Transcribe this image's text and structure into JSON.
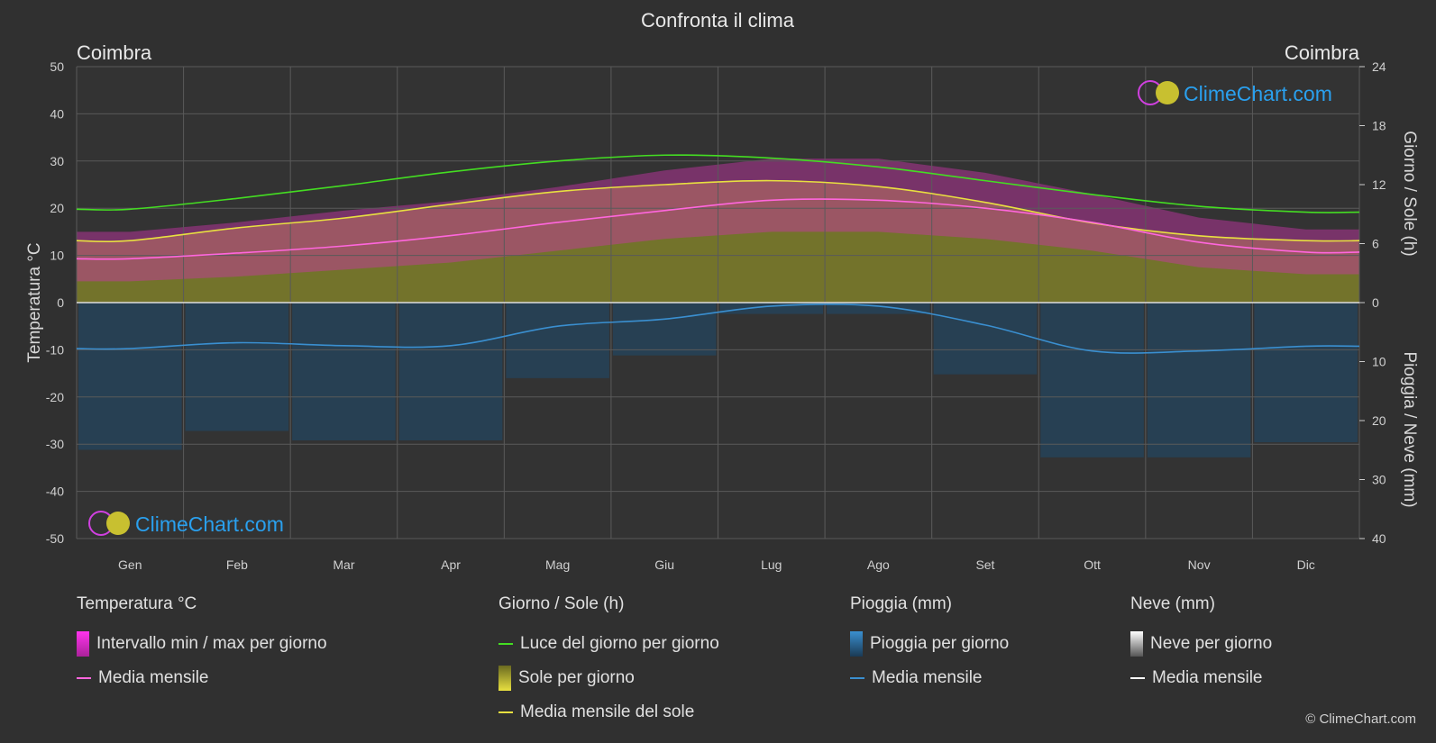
{
  "title": "Confronta il clima",
  "location_left": "Coimbra",
  "location_right": "Coimbra",
  "watermark": "ClimeChart.com",
  "copyright": "© ClimeChart.com",
  "colors": {
    "background": "#303030",
    "daylight": "#44dd22",
    "sunshine_avg": "#e8e040",
    "sunshine_fill": "#8a8a2a",
    "temp_avg": "#ff66dd",
    "temp_band": "#cc33aa",
    "rain": "#3a8fd0",
    "snow": "#ffffff",
    "watermark": "#2aa0ee"
  },
  "legend": {
    "temperature": {
      "title": "Temperatura °C",
      "range": "Intervallo min / max per giorno",
      "avg": "Media mensile"
    },
    "sun": {
      "title": "Giorno / Sole (h)",
      "daylight": "Luce del giorno per giorno",
      "sunshine": "Sole per giorno",
      "sunshine_avg": "Media mensile del sole"
    },
    "rain": {
      "title": "Pioggia (mm)",
      "daily": "Pioggia per giorno",
      "avg": "Media mensile"
    },
    "snow": {
      "title": "Neve (mm)",
      "daily": "Neve per giorno",
      "avg": "Media mensile"
    }
  },
  "chart_data": {
    "type": "area",
    "months": [
      "Gen",
      "Feb",
      "Mar",
      "Apr",
      "Mag",
      "Giu",
      "Lug",
      "Ago",
      "Set",
      "Ott",
      "Nov",
      "Dic"
    ],
    "y_left": {
      "label": "Temperatura °C",
      "min": -50,
      "max": 50,
      "ticks": [
        50,
        40,
        30,
        20,
        10,
        0,
        -10,
        -20,
        -30,
        -40,
        -50
      ]
    },
    "y_right_top": {
      "label": "Giorno / Sole (h)",
      "min": 0,
      "max": 24,
      "ticks": [
        24,
        18,
        12,
        6,
        0
      ]
    },
    "y_right_bottom": {
      "label": "Pioggia / Neve (mm)",
      "min": 0,
      "max": 40,
      "ticks": [
        0,
        10,
        20,
        30,
        40
      ]
    },
    "series": [
      {
        "name": "Luce del giorno per giorno",
        "axis": "hours",
        "values": [
          9.5,
          10.6,
          11.9,
          13.3,
          14.4,
          15.0,
          14.7,
          13.8,
          12.4,
          11.0,
          9.8,
          9.2
        ]
      },
      {
        "name": "Media mensile del sole",
        "axis": "hours",
        "values": [
          6.3,
          7.6,
          8.6,
          10.0,
          11.3,
          12.0,
          12.4,
          11.8,
          10.2,
          8.1,
          6.8,
          6.3
        ]
      },
      {
        "name": "Media mensile",
        "group": "temperatura",
        "axis": "temp",
        "values": [
          9.3,
          10.5,
          12.0,
          14.2,
          17.0,
          19.5,
          21.7,
          21.7,
          20.0,
          17.0,
          12.8,
          10.7
        ]
      },
      {
        "name": "Temp max media",
        "group": "temperatura",
        "axis": "temp",
        "values": [
          15.0,
          17.0,
          19.5,
          21.5,
          24.5,
          28.0,
          30.5,
          30.5,
          27.5,
          23.0,
          18.0,
          15.5
        ]
      },
      {
        "name": "Temp min media",
        "group": "temperatura",
        "axis": "temp",
        "values": [
          4.5,
          5.5,
          7.0,
          8.5,
          11.0,
          13.5,
          15.0,
          15.0,
          13.5,
          11.0,
          7.5,
          6.0
        ]
      },
      {
        "name": "Media mensile",
        "group": "pioggia",
        "axis": "rain_mm",
        "values": [
          7.8,
          6.8,
          7.3,
          7.3,
          4.0,
          2.8,
          0.6,
          0.6,
          3.8,
          8.2,
          8.2,
          7.4
        ]
      }
    ]
  }
}
